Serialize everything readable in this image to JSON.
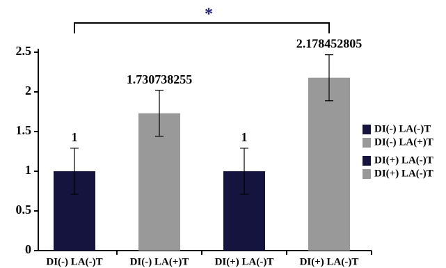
{
  "chart_data": {
    "type": "bar",
    "categories": [
      "DI(-) LA(-)T",
      "DI(-) LA(+)T",
      "DI(+) LA(-)T",
      "DI(+) LA(-)T"
    ],
    "values": [
      1,
      1.730738255,
      1,
      2.178452805
    ],
    "errors": [
      0.29,
      0.29,
      0.29,
      0.29
    ],
    "colors": [
      "#14143f",
      "#999999",
      "#14143f",
      "#999999"
    ],
    "ylim": [
      0,
      2.5
    ],
    "yticks": [
      0,
      0.5,
      1,
      1.5,
      2,
      2.5
    ],
    "annotation": "*",
    "legend": "right"
  }
}
